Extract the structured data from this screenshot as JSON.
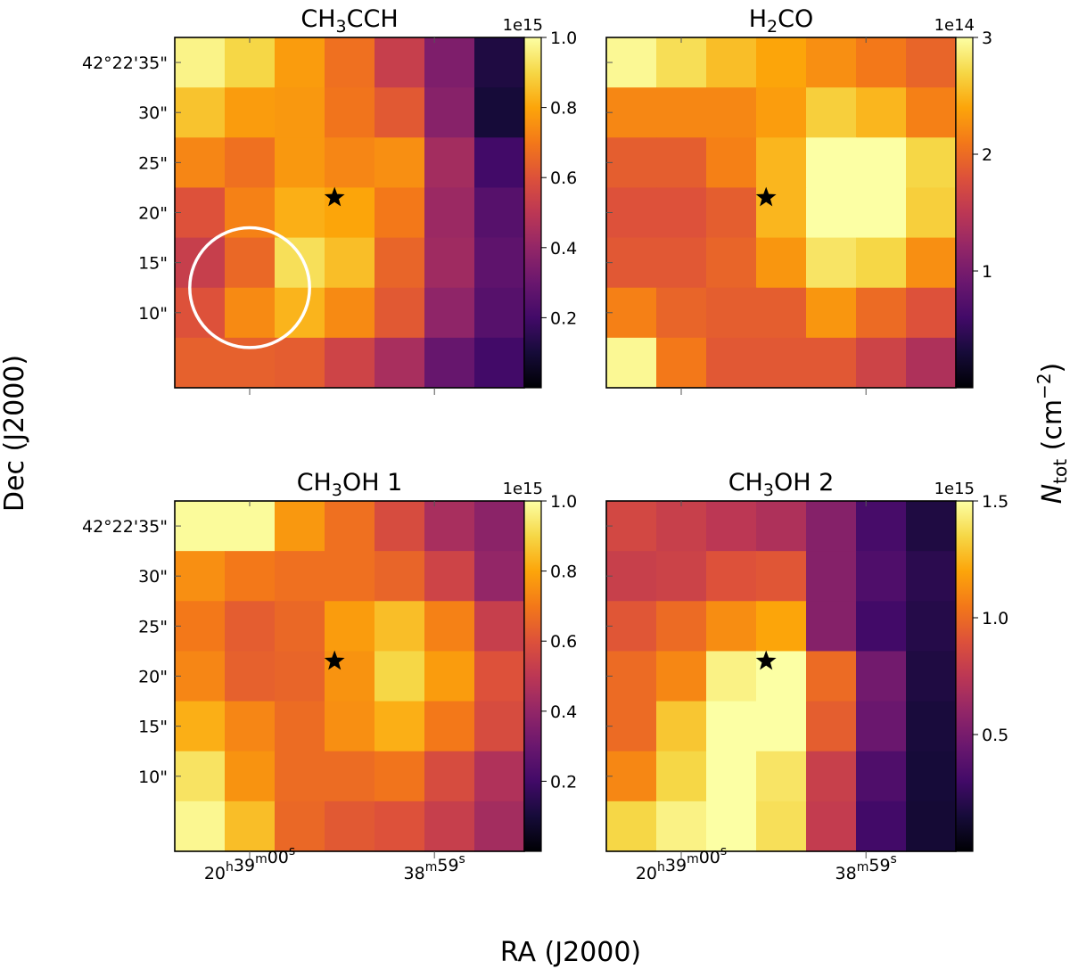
{
  "figure": {
    "x_label": "RA (J2000)",
    "y_label": "Dec (J2000)",
    "colorbar_label_main": "N",
    "colorbar_label_sub": "tot",
    "colorbar_label_unit": " (cm",
    "colorbar_label_exp": "−2",
    "colorbar_label_close": ")"
  },
  "chart_data": [
    {
      "type": "heatmap",
      "title_main": "CH",
      "title_sub": "3",
      "title_rest": "CCH",
      "colormap": "inferno",
      "vmin": 0.0,
      "vmax": 1.0,
      "cb_offset": "1e15",
      "cb_ticks": [
        0.2,
        0.4,
        0.6,
        0.8,
        1.0
      ],
      "cb_tick_labels": [
        "0.2",
        "0.4",
        "0.6",
        "0.8",
        "1.0"
      ],
      "y_tick_labels": [
        "42°22'35\"",
        "30\"",
        "25\"",
        "20\"",
        "15\"",
        "10\""
      ],
      "x_tick_labels": [],
      "show_y_labels": true,
      "show_x_labels": false,
      "grid": [
        [
          0.97,
          0.9,
          0.78,
          0.68,
          0.53,
          0.35,
          0.12
        ],
        [
          0.86,
          0.78,
          0.77,
          0.69,
          0.62,
          0.37,
          0.1
        ],
        [
          0.73,
          0.68,
          0.77,
          0.73,
          0.75,
          0.44,
          0.2
        ],
        [
          0.6,
          0.72,
          0.82,
          0.8,
          0.7,
          0.42,
          0.25
        ],
        [
          0.53,
          0.66,
          0.92,
          0.85,
          0.65,
          0.43,
          0.27
        ],
        [
          0.6,
          0.74,
          0.83,
          0.74,
          0.62,
          0.39,
          0.25
        ],
        [
          0.64,
          0.64,
          0.63,
          0.55,
          0.45,
          0.29,
          0.2
        ]
      ],
      "star": [
        3.2,
        3.2
      ],
      "beam_circle": {
        "x": 1.5,
        "y": 5.0,
        "r": 1.2
      }
    },
    {
      "type": "heatmap",
      "title_main": "H",
      "title_sub": "2",
      "title_rest": "CO",
      "colormap": "inferno",
      "vmin": 0.0,
      "vmax": 3.0,
      "cb_offset": "1e14",
      "cb_ticks": [
        1,
        2,
        3
      ],
      "cb_tick_labels": [
        "1",
        "2",
        "3"
      ],
      "y_tick_labels": [],
      "x_tick_labels": [],
      "show_y_labels": false,
      "show_x_labels": false,
      "grid": [
        [
          2.95,
          2.75,
          2.55,
          2.4,
          2.25,
          2.1,
          1.95
        ],
        [
          2.2,
          2.2,
          2.2,
          2.35,
          2.65,
          2.5,
          2.15
        ],
        [
          1.9,
          1.9,
          2.15,
          2.5,
          3.0,
          3.0,
          2.7
        ],
        [
          1.8,
          1.8,
          1.9,
          2.5,
          3.0,
          3.0,
          2.65
        ],
        [
          1.85,
          1.85,
          1.95,
          2.3,
          2.8,
          2.7,
          2.25
        ],
        [
          2.15,
          1.95,
          1.9,
          1.9,
          2.3,
          2.0,
          1.8
        ],
        [
          2.95,
          2.1,
          1.85,
          1.85,
          1.85,
          1.65,
          1.4
        ]
      ],
      "star": [
        3.2,
        3.2
      ],
      "beam_circle": null
    },
    {
      "type": "heatmap",
      "title_main": "CH",
      "title_sub": "3",
      "title_rest": "OH 1",
      "colormap": "inferno",
      "vmin": 0.0,
      "vmax": 1.0,
      "cb_offset": "1e15",
      "cb_ticks": [
        0.2,
        0.4,
        0.6,
        0.8,
        1.0
      ],
      "cb_tick_labels": [
        "0.2",
        "0.4",
        "0.6",
        "0.8",
        "1.0"
      ],
      "y_tick_labels": [
        "42°22'35\"",
        "30\"",
        "25\"",
        "20\"",
        "15\"",
        "10\""
      ],
      "x_tick_labels": [
        "20h39m00s",
        "38m59s"
      ],
      "show_y_labels": true,
      "show_x_labels": true,
      "grid": [
        [
          0.99,
          0.99,
          0.77,
          0.68,
          0.58,
          0.45,
          0.38
        ],
        [
          0.75,
          0.7,
          0.68,
          0.68,
          0.65,
          0.55,
          0.4
        ],
        [
          0.7,
          0.63,
          0.66,
          0.78,
          0.85,
          0.72,
          0.53
        ],
        [
          0.73,
          0.64,
          0.65,
          0.76,
          0.9,
          0.78,
          0.6
        ],
        [
          0.82,
          0.73,
          0.67,
          0.75,
          0.82,
          0.7,
          0.58
        ],
        [
          0.93,
          0.76,
          0.67,
          0.67,
          0.69,
          0.58,
          0.47
        ],
        [
          0.98,
          0.85,
          0.66,
          0.62,
          0.6,
          0.53,
          0.44
        ]
      ],
      "star": [
        3.2,
        3.2
      ],
      "beam_circle": null
    },
    {
      "type": "heatmap",
      "title_main": "CH",
      "title_sub": "3",
      "title_rest": "OH 2",
      "colormap": "inferno",
      "vmin": 0.0,
      "vmax": 1.5,
      "cb_offset": "1e15",
      "cb_ticks": [
        0.5,
        1.0,
        1.5
      ],
      "cb_tick_labels": [
        "0.5",
        "1.0",
        "1.5"
      ],
      "y_tick_labels": [],
      "x_tick_labels": [
        "20h39m00s",
        "38m59s"
      ],
      "show_y_labels": false,
      "show_x_labels": true,
      "grid": [
        [
          0.85,
          0.8,
          0.75,
          0.7,
          0.55,
          0.32,
          0.18
        ],
        [
          0.8,
          0.82,
          0.9,
          0.92,
          0.55,
          0.35,
          0.22
        ],
        [
          0.92,
          1.0,
          1.12,
          1.2,
          0.55,
          0.3,
          0.2
        ],
        [
          1.0,
          1.1,
          1.45,
          1.5,
          1.0,
          0.48,
          0.18
        ],
        [
          1.0,
          1.3,
          1.5,
          1.5,
          0.95,
          0.45,
          0.16
        ],
        [
          1.1,
          1.35,
          1.5,
          1.4,
          0.8,
          0.35,
          0.15
        ],
        [
          1.35,
          1.45,
          1.5,
          1.38,
          0.78,
          0.3,
          0.14
        ]
      ],
      "star": [
        3.2,
        3.2
      ],
      "beam_circle": null
    }
  ]
}
